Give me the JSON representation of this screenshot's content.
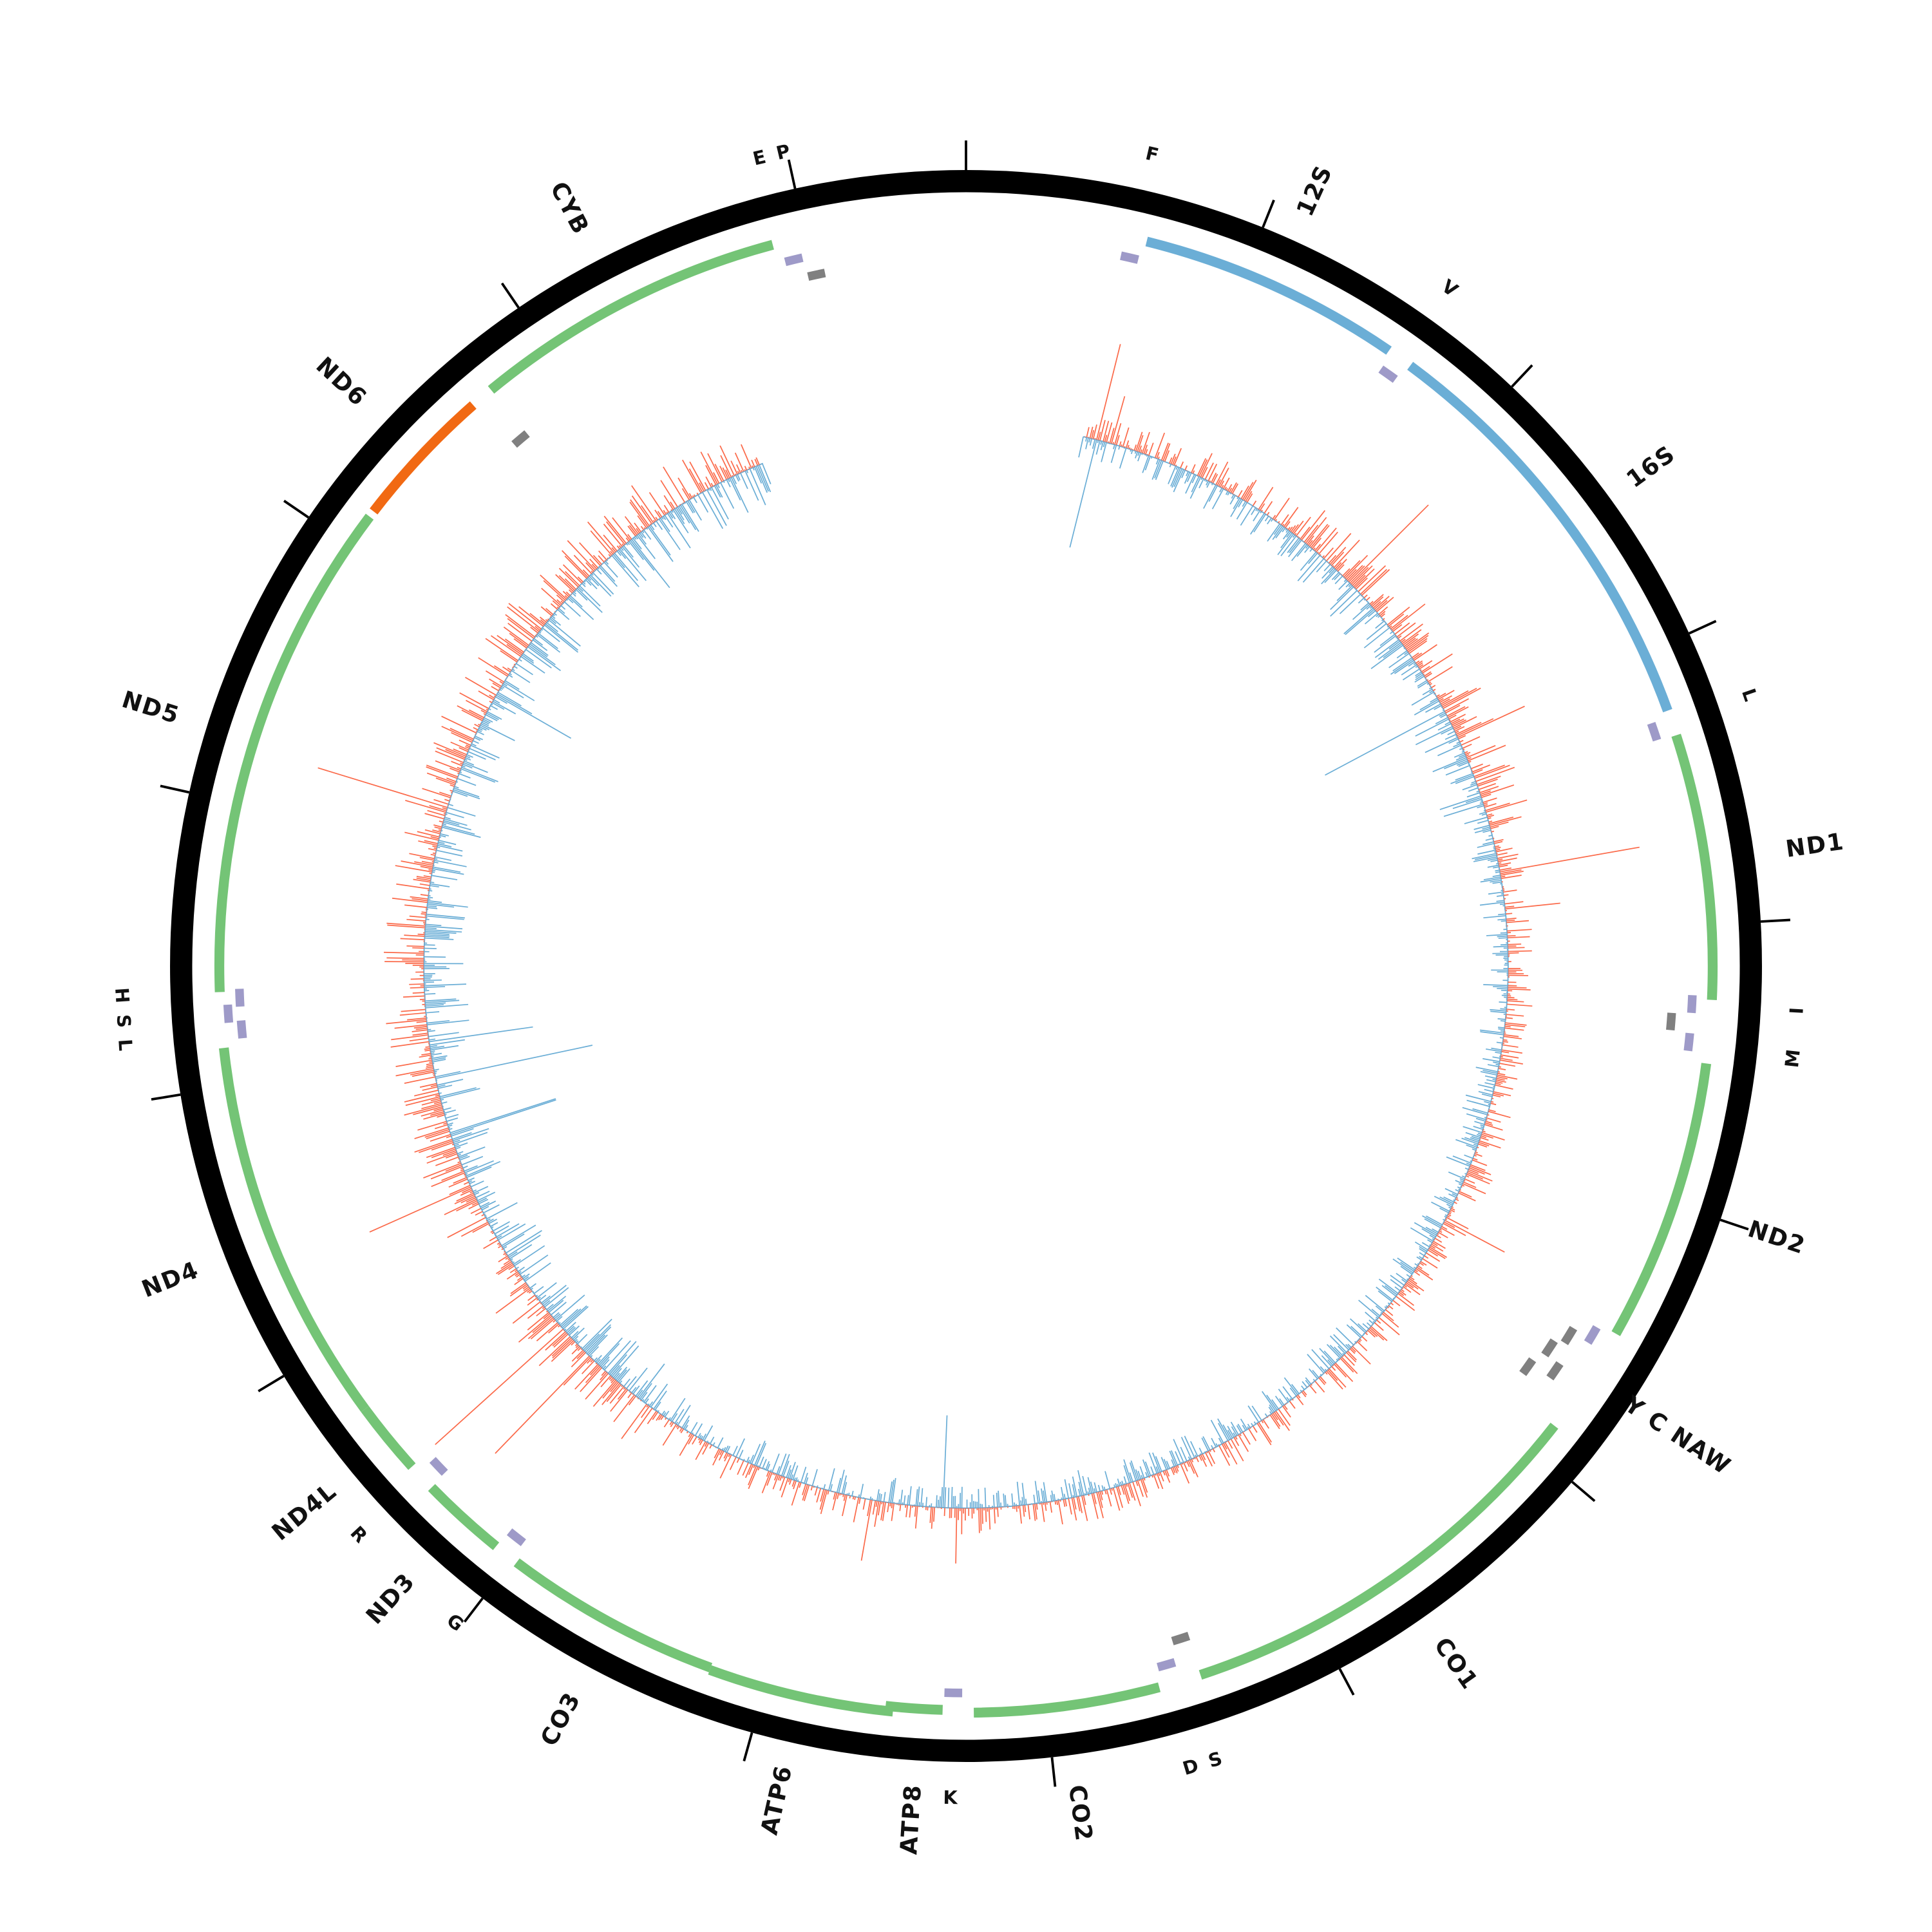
{
  "diagram": {
    "type": "circular-genome-map",
    "colors": {
      "backbone": "#000000",
      "protein_coding": "#74c476",
      "protein_coding_reverse": "#f16913",
      "rRNA": "#6baed6",
      "tRNA": "#9e9ac8",
      "tRNA_other": "#808080",
      "coverage_up": "#fb6a4a",
      "coverage_down": "#6baed6"
    },
    "gene_labels": [
      "F",
      "12S",
      "V",
      "16S",
      "L",
      "ND1",
      "I",
      "M",
      "ND2",
      "Y C NAW",
      "CO1",
      "D S",
      "CO2",
      "K",
      "ATP8",
      "ATP6",
      "CO3",
      "G",
      "ND3",
      "R",
      "ND4L",
      "ND4",
      "H S L",
      "ND5",
      "ND6",
      "CYB",
      "E P"
    ],
    "genes": [
      {
        "name": "12S",
        "type": "rRNA"
      },
      {
        "name": "16S",
        "type": "rRNA"
      },
      {
        "name": "ND1",
        "type": "protein_coding"
      },
      {
        "name": "ND2",
        "type": "protein_coding"
      },
      {
        "name": "CO1",
        "type": "protein_coding"
      },
      {
        "name": "CO2",
        "type": "protein_coding"
      },
      {
        "name": "ATP8",
        "type": "protein_coding"
      },
      {
        "name": "ATP6",
        "type": "protein_coding"
      },
      {
        "name": "CO3",
        "type": "protein_coding"
      },
      {
        "name": "ND3",
        "type": "protein_coding"
      },
      {
        "name": "ND4L",
        "type": "protein_coding"
      },
      {
        "name": "ND4",
        "type": "protein_coding"
      },
      {
        "name": "ND5",
        "type": "protein_coding"
      },
      {
        "name": "ND6",
        "type": "protein_coding_reverse"
      },
      {
        "name": "CYB",
        "type": "protein_coding"
      }
    ]
  }
}
